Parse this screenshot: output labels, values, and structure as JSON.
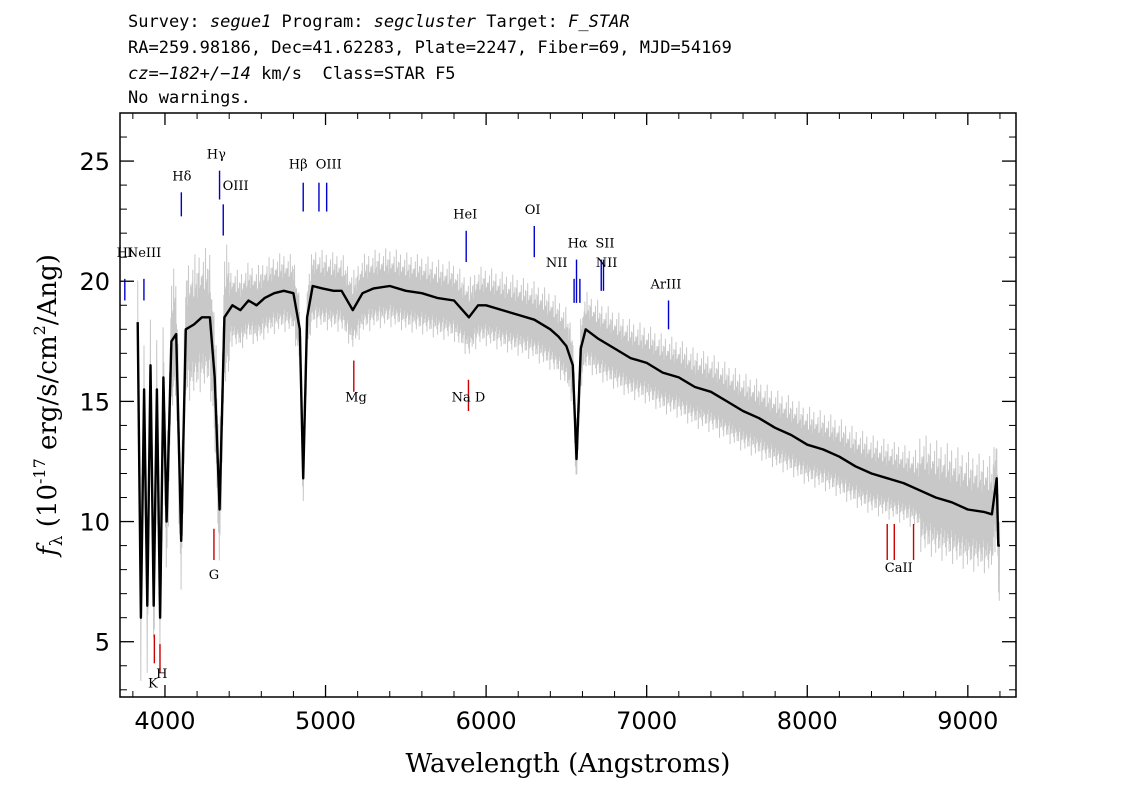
{
  "header": {
    "line1": {
      "survey_label": "Survey: ",
      "survey": "segue1",
      "program_label": " Program: ",
      "program": "segcluster",
      "target_label": " Target: ",
      "target": "F_STAR"
    },
    "line2": "RA=259.98186, Dec=41.62283, Plate=2247, Fiber=69, MJD=54169",
    "line3": {
      "cz_label": "cz=",
      "cz_value": "−182+/−14",
      "cz_unit": " km/s  Class=STAR F5"
    },
    "line4": "No warnings."
  },
  "chart_data": {
    "type": "line",
    "title": "",
    "xlabel": "Wavelength (Angstroms)",
    "ylabel": "f_λ (10^-17 erg/s/cm^2/Ang)",
    "xlim": [
      3720,
      9300
    ],
    "ylim": [
      2.7,
      27
    ],
    "x_ticks": [
      4000,
      5000,
      6000,
      7000,
      8000,
      9000
    ],
    "y_ticks": [
      5,
      10,
      15,
      20,
      25
    ],
    "series": [
      {
        "role": "smoothed spectrum",
        "color": "#000000",
        "points": [
          [
            3830,
            18.3
          ],
          [
            3850,
            6.0
          ],
          [
            3870,
            15.5
          ],
          [
            3890,
            6.5
          ],
          [
            3910,
            16.5
          ],
          [
            3930,
            6.5
          ],
          [
            3950,
            15.5
          ],
          [
            3970,
            6.0
          ],
          [
            3990,
            16.0
          ],
          [
            4010,
            10.0
          ],
          [
            4040,
            17.5
          ],
          [
            4070,
            17.8
          ],
          [
            4101,
            9.2
          ],
          [
            4130,
            18.0
          ],
          [
            4180,
            18.2
          ],
          [
            4230,
            18.5
          ],
          [
            4280,
            18.5
          ],
          [
            4310,
            16.0
          ],
          [
            4340,
            10.5
          ],
          [
            4370,
            18.5
          ],
          [
            4420,
            19.0
          ],
          [
            4470,
            18.8
          ],
          [
            4520,
            19.2
          ],
          [
            4570,
            19.0
          ],
          [
            4620,
            19.3
          ],
          [
            4680,
            19.5
          ],
          [
            4740,
            19.6
          ],
          [
            4800,
            19.5
          ],
          [
            4840,
            18.0
          ],
          [
            4861,
            11.8
          ],
          [
            4885,
            18.5
          ],
          [
            4920,
            19.8
          ],
          [
            4980,
            19.7
          ],
          [
            5050,
            19.6
          ],
          [
            5100,
            19.6
          ],
          [
            5170,
            18.8
          ],
          [
            5230,
            19.5
          ],
          [
            5300,
            19.7
          ],
          [
            5400,
            19.8
          ],
          [
            5500,
            19.6
          ],
          [
            5600,
            19.5
          ],
          [
            5700,
            19.3
          ],
          [
            5800,
            19.2
          ],
          [
            5893,
            18.5
          ],
          [
            5950,
            19.0
          ],
          [
            6000,
            19.0
          ],
          [
            6100,
            18.8
          ],
          [
            6200,
            18.6
          ],
          [
            6300,
            18.4
          ],
          [
            6400,
            18.0
          ],
          [
            6450,
            17.7
          ],
          [
            6500,
            17.3
          ],
          [
            6540,
            16.5
          ],
          [
            6563,
            12.6
          ],
          [
            6590,
            17.2
          ],
          [
            6620,
            18.0
          ],
          [
            6700,
            17.6
          ],
          [
            6800,
            17.2
          ],
          [
            6900,
            16.8
          ],
          [
            7000,
            16.6
          ],
          [
            7100,
            16.2
          ],
          [
            7200,
            16.0
          ],
          [
            7300,
            15.6
          ],
          [
            7400,
            15.4
          ],
          [
            7500,
            15.0
          ],
          [
            7600,
            14.6
          ],
          [
            7700,
            14.3
          ],
          [
            7800,
            13.9
          ],
          [
            7900,
            13.6
          ],
          [
            8000,
            13.2
          ],
          [
            8100,
            13.0
          ],
          [
            8200,
            12.7
          ],
          [
            8300,
            12.3
          ],
          [
            8400,
            12.0
          ],
          [
            8500,
            11.8
          ],
          [
            8600,
            11.6
          ],
          [
            8700,
            11.3
          ],
          [
            8800,
            11.0
          ],
          [
            8900,
            10.8
          ],
          [
            9000,
            10.5
          ],
          [
            9100,
            10.4
          ],
          [
            9150,
            10.3
          ],
          [
            9180,
            11.8
          ],
          [
            9190,
            9.0
          ],
          [
            9200,
            9.0
          ]
        ]
      },
      {
        "role": "raw flux",
        "color": "#c8c8c8",
        "sigma_pattern": [
          1.6,
          1.3,
          0.9,
          1.7,
          1.1,
          1.4
        ]
      }
    ],
    "line_markers": {
      "emission_color": "#0000cc",
      "absorption_color": "#cc0000",
      "emission": [
        {
          "label": "HI",
          "wavelength": 3750,
          "ymin": 19.2,
          "ymax": 20.1
        },
        {
          "label": "NeIII",
          "wavelength": 3869,
          "ymin": 19.2,
          "ymax": 20.1
        },
        {
          "label": "Hδ",
          "wavelength": 4102,
          "ymin": 22.7,
          "ymax": 23.7
        },
        {
          "label": "Hγ",
          "wavelength": 4340,
          "ymin": 23.4,
          "ymax": 24.6
        },
        {
          "label": "OIII",
          "wavelength": 4363,
          "ymin": 21.9,
          "ymax": 23.2
        },
        {
          "label": "Hβ",
          "wavelength": 4861,
          "ymin": 22.9,
          "ymax": 24.1
        },
        {
          "label": "OIII",
          "wavelength": 4959,
          "ymin": 22.9,
          "ymax": 24.1
        },
        {
          "label": "OIII",
          "wavelength": 5007,
          "ymin": 22.9,
          "ymax": 24.1
        },
        {
          "label": "HeI",
          "wavelength": 5876,
          "ymin": 20.8,
          "ymax": 22.1
        },
        {
          "label": "OI",
          "wavelength": 6300,
          "ymin": 21.0,
          "ymax": 22.3
        },
        {
          "label": "NII",
          "wavelength": 6548,
          "ymin": 19.1,
          "ymax": 20.1
        },
        {
          "label": "Hα",
          "wavelength": 6563,
          "ymin": 19.1,
          "ymax": 20.9
        },
        {
          "label": "NII",
          "wavelength": 6584,
          "ymin": 19.1,
          "ymax": 20.1
        },
        {
          "label": "SII",
          "wavelength": 6717,
          "ymin": 19.6,
          "ymax": 20.9
        },
        {
          "label": "SII",
          "wavelength": 6731,
          "ymin": 19.6,
          "ymax": 20.9
        },
        {
          "label": "ArIII",
          "wavelength": 7136,
          "ymin": 18.0,
          "ymax": 19.2
        }
      ],
      "absorption": [
        {
          "label": "K",
          "wavelength": 3934,
          "ymin": 4.1,
          "ymax": 5.3
        },
        {
          "label": "H",
          "wavelength": 3969,
          "ymin": 3.7,
          "ymax": 4.9
        },
        {
          "label": "G",
          "wavelength": 4305,
          "ymin": 8.4,
          "ymax": 9.7
        },
        {
          "label": "Mg",
          "wavelength": 5176,
          "ymin": 15.4,
          "ymax": 16.7
        },
        {
          "label": "Na D",
          "wavelength": 5890,
          "ymin": 14.6,
          "ymax": 15.9
        },
        {
          "label": "CaII",
          "wavelength": 8498,
          "ymin": 8.4,
          "ymax": 9.9
        },
        {
          "label": "CaII",
          "wavelength": 8542,
          "ymin": 8.4,
          "ymax": 9.9
        },
        {
          "label": "CaII",
          "wavelength": 8662,
          "ymin": 8.4,
          "ymax": 9.9
        }
      ]
    },
    "line_labels": {
      "emission": [
        {
          "text": "HI",
          "wavelength": 3750,
          "y": 21.0
        },
        {
          "text": "NeIII",
          "wavelength": 3870,
          "y": 21.0
        },
        {
          "text": "Hδ",
          "wavelength": 4105,
          "y": 24.2
        },
        {
          "text": "Hγ",
          "wavelength": 4320,
          "y": 25.1
        },
        {
          "text": "OIII",
          "wavelength": 4440,
          "y": 23.8
        },
        {
          "text": "Hβ",
          "wavelength": 4830,
          "y": 24.7
        },
        {
          "text": "OIII",
          "wavelength": 5020,
          "y": 24.7
        },
        {
          "text": "HeI",
          "wavelength": 5870,
          "y": 22.6
        },
        {
          "text": "OI",
          "wavelength": 6290,
          "y": 22.8
        },
        {
          "text": "NII",
          "wavelength": 6440,
          "y": 20.6
        },
        {
          "text": "Hα",
          "wavelength": 6570,
          "y": 21.4
        },
        {
          "text": "SII",
          "wavelength": 6740,
          "y": 21.4
        },
        {
          "text": "NII",
          "wavelength": 6750,
          "y": 20.6
        },
        {
          "text": "ArIII",
          "wavelength": 7120,
          "y": 19.7
        }
      ],
      "absorption": [
        {
          "text": "K",
          "wavelength": 3925,
          "y": 3.1
        },
        {
          "text": "H",
          "wavelength": 3980,
          "y": 3.5
        },
        {
          "text": "G",
          "wavelength": 4305,
          "y": 7.6
        },
        {
          "text": "Mg",
          "wavelength": 5190,
          "y": 15.0
        },
        {
          "text": "Na  D",
          "wavelength": 5890,
          "y": 15.0
        },
        {
          "text": "CaII",
          "wavelength": 8570,
          "y": 7.9
        }
      ]
    }
  }
}
